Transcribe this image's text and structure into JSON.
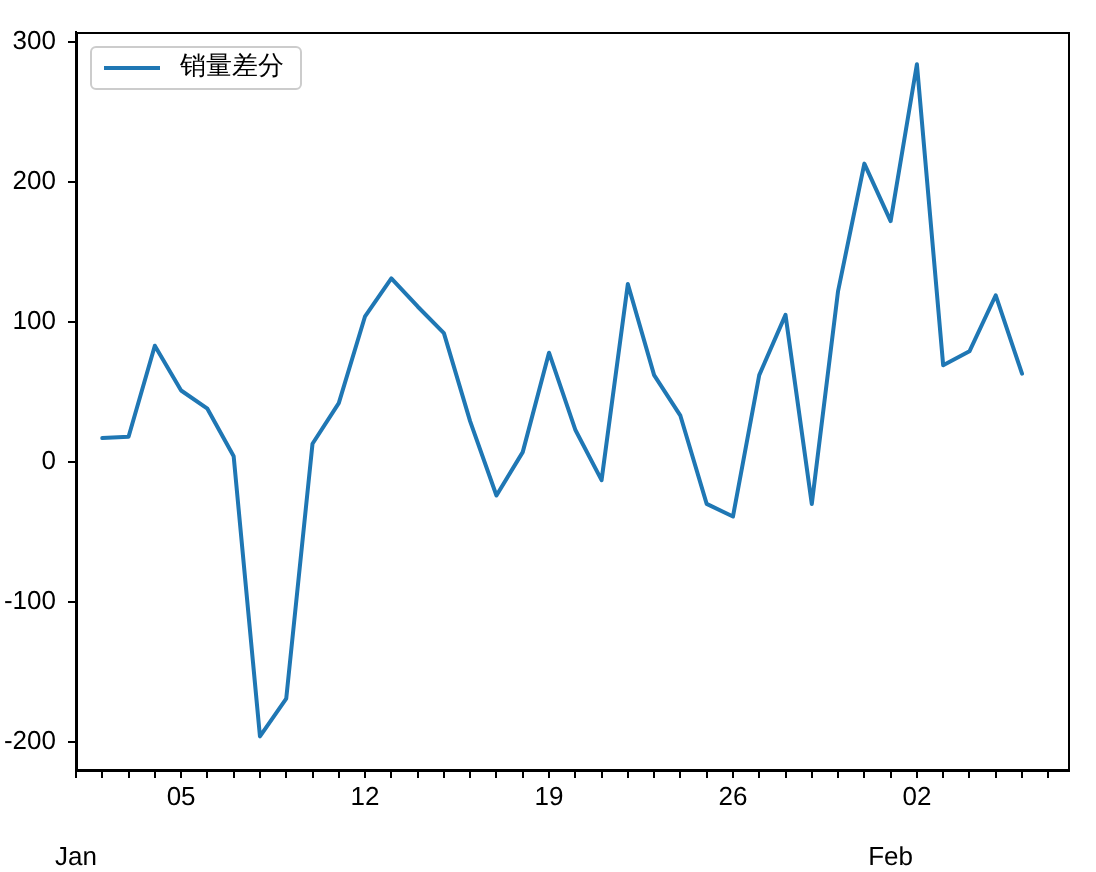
{
  "chart_data": {
    "type": "line",
    "x": [
      "--01-02",
      "--01-03",
      "--01-04",
      "--01-05",
      "--01-06",
      "--01-07",
      "--01-08",
      "--01-09",
      "--01-10",
      "--01-11",
      "--01-12",
      "--01-13",
      "--01-14",
      "--01-15",
      "--01-16",
      "--01-17",
      "--01-18",
      "--01-19",
      "--01-20",
      "--01-21",
      "--01-22",
      "--01-23",
      "--01-24",
      "--01-25",
      "--01-26",
      "--01-27",
      "--01-28",
      "--01-29",
      "--01-30",
      "--01-31",
      "--02-01",
      "--02-02",
      "--02-03",
      "--02-04",
      "--02-05",
      "--02-06"
    ],
    "series": [
      {
        "name": "销量差分",
        "color": "#1f77b4",
        "values": [
          17,
          18,
          83,
          51,
          38,
          4,
          -196,
          -169,
          13,
          42,
          104,
          131,
          111,
          92,
          29,
          -24,
          7,
          78,
          23,
          -13,
          127,
          62,
          33,
          -30,
          -39,
          62,
          105,
          -30,
          122,
          213,
          172,
          284,
          69,
          79,
          119,
          63
        ]
      }
    ],
    "xlim": [
      "--01-01",
      "--02-07T18:00"
    ],
    "ylim": [
      -220,
      307
    ],
    "xticks": [
      {
        "value": "--01-01",
        "label": null
      },
      {
        "value": "--01-02",
        "label": null
      },
      {
        "value": "--01-03",
        "label": null
      },
      {
        "value": "--01-04",
        "label": null
      },
      {
        "value": "--01-05",
        "label": "05"
      },
      {
        "value": "--01-06",
        "label": null
      },
      {
        "value": "--01-07",
        "label": null
      },
      {
        "value": "--01-08",
        "label": null
      },
      {
        "value": "--01-09",
        "label": null
      },
      {
        "value": "--01-10",
        "label": null
      },
      {
        "value": "--01-11",
        "label": null
      },
      {
        "value": "--01-12",
        "label": "12"
      },
      {
        "value": "--01-13",
        "label": null
      },
      {
        "value": "--01-14",
        "label": null
      },
      {
        "value": "--01-15",
        "label": null
      },
      {
        "value": "--01-16",
        "label": null
      },
      {
        "value": "--01-17",
        "label": null
      },
      {
        "value": "--01-18",
        "label": null
      },
      {
        "value": "--01-19",
        "label": "19"
      },
      {
        "value": "--01-20",
        "label": null
      },
      {
        "value": "--01-21",
        "label": null
      },
      {
        "value": "--01-22",
        "label": null
      },
      {
        "value": "--01-23",
        "label": null
      },
      {
        "value": "--01-24",
        "label": null
      },
      {
        "value": "--01-25",
        "label": null
      },
      {
        "value": "--01-26",
        "label": "26"
      },
      {
        "value": "--01-27",
        "label": null
      },
      {
        "value": "--01-28",
        "label": null
      },
      {
        "value": "--01-29",
        "label": null
      },
      {
        "value": "--01-30",
        "label": null
      },
      {
        "value": "--01-31",
        "label": null
      },
      {
        "value": "--02-01",
        "label": null
      },
      {
        "value": "--02-02",
        "label": "02"
      },
      {
        "value": "--02-03",
        "label": null
      },
      {
        "value": "--02-04",
        "label": null
      },
      {
        "value": "--02-05",
        "label": null
      },
      {
        "value": "--02-06",
        "label": null
      },
      {
        "value": "--02-07",
        "label": null
      }
    ],
    "x2lim": [
      "--01-01",
      "--02-07T18:00"
    ],
    "x2ticks": [
      {
        "value": "--01-01",
        "label": "Jan"
      },
      {
        "value": "--02-01",
        "label": "Feb"
      }
    ],
    "yticks": [
      -200,
      -100,
      0,
      100,
      200,
      300
    ],
    "legend": "top left"
  }
}
